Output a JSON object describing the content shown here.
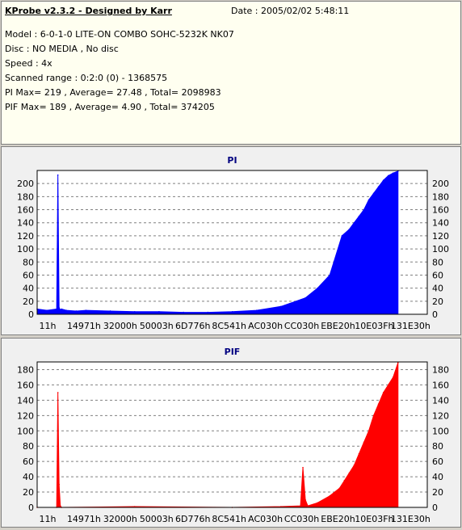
{
  "header": {
    "title": "KProbe v2.3.2 - Designed by Karr",
    "date": "Date : 2005/02/02 5:48:11",
    "lines": [
      "Model : 6-0-1-0 LITE-ON COMBO SOHC-5232K NK07",
      "Disc : NO MEDIA , No disc",
      "Speed : 4x",
      "Scanned range : 0:2:0 (0) - 1368575",
      "PI Max= 219 , Average= 27.48 , Total= 2098983",
      "PIF Max= 189 , Average= 4.90 , Total= 374205"
    ]
  },
  "chart_data": [
    {
      "type": "area",
      "title": "PI",
      "color": "#0000ff",
      "categories": [
        "11h",
        "14971h",
        "32000h",
        "50003h",
        "6D776h",
        "8C541h",
        "AC030h",
        "CC030h",
        "EBE20h",
        "10E03Fh",
        "131E30h"
      ],
      "yticks": [
        0,
        20,
        40,
        60,
        80,
        100,
        120,
        140,
        160,
        180,
        200
      ],
      "ylim": [
        0,
        220
      ],
      "grid": true,
      "x": [
        0,
        4,
        8,
        8.5,
        9,
        9.5,
        10,
        12,
        16,
        20,
        30,
        40,
        50,
        60,
        70,
        80,
        90,
        100,
        110,
        115,
        120,
        125,
        128,
        130,
        132,
        134,
        136,
        138,
        140,
        142,
        144,
        146,
        148
      ],
      "values": [
        8,
        6,
        8,
        213,
        10,
        7,
        8,
        6,
        5,
        6,
        5,
        4,
        4,
        3,
        3,
        4,
        6,
        12,
        25,
        40,
        60,
        120,
        130,
        140,
        150,
        160,
        175,
        185,
        195,
        205,
        212,
        216,
        219
      ]
    },
    {
      "type": "area",
      "title": "PIF",
      "color": "#ff0000",
      "categories": [
        "11h",
        "14971h",
        "32000h",
        "50003h",
        "6D776h",
        "8C541h",
        "AC030h",
        "CC030h",
        "EBE20h",
        "10E03Fh",
        "131E30h"
      ],
      "yticks": [
        0,
        20,
        40,
        60,
        80,
        100,
        120,
        140,
        160,
        180
      ],
      "ylim": [
        0,
        190
      ],
      "grid": true,
      "x": [
        0,
        8,
        8.5,
        9,
        9.5,
        10,
        40,
        80,
        100,
        108,
        109,
        110,
        111,
        115,
        120,
        124,
        126,
        128,
        130,
        132,
        134,
        136,
        138,
        140,
        142,
        144,
        146,
        148
      ],
      "values": [
        0,
        0,
        150,
        30,
        2,
        0,
        1,
        0,
        1,
        2,
        52,
        10,
        2,
        6,
        15,
        25,
        35,
        45,
        55,
        70,
        85,
        100,
        120,
        135,
        150,
        160,
        170,
        189
      ]
    }
  ]
}
